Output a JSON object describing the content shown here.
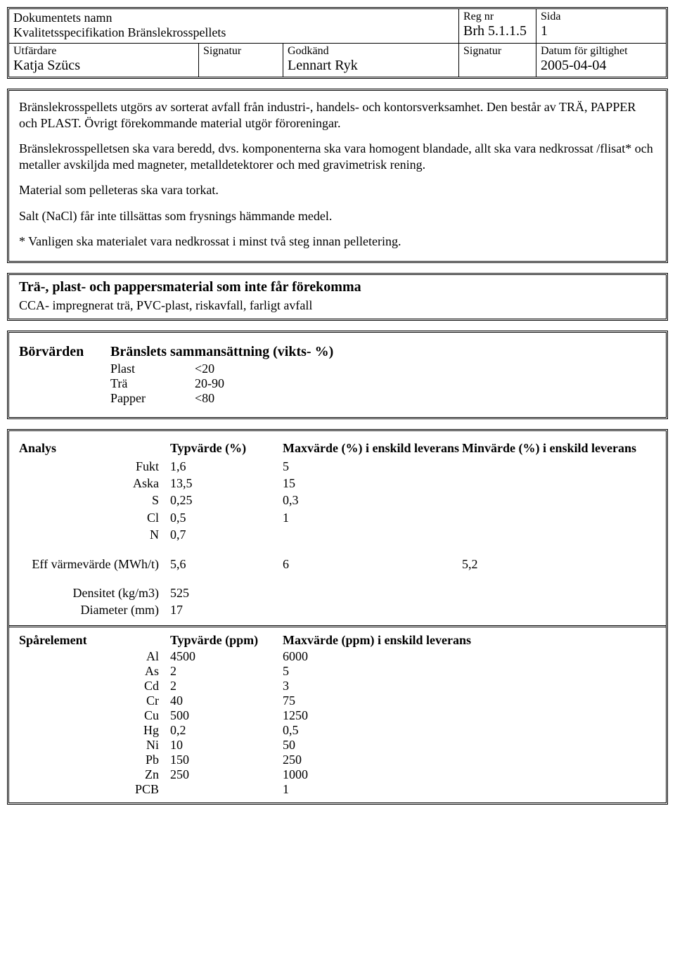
{
  "header": {
    "doc_name_label": "Dokumentets namn",
    "doc_title": "Kvalitetsspecifikation Bränslekrosspellets",
    "reg_nr_label": "Reg nr",
    "reg_nr": "Brh 5.1.1.5",
    "sida_label": "Sida",
    "sida": "1",
    "utfardare_label": "Utfärdare",
    "utfardare": "Katja Szücs",
    "signatur_label": "Signatur",
    "godkand_label": "Godkänd",
    "godkand": "Lennart Ryk",
    "signatur2_label": "Signatur",
    "datum_label": "Datum för giltighet",
    "datum": "2005-04-04"
  },
  "body": {
    "p1": "Bränslekrosspellets utgörs av sorterat avfall från industri-, handels- och kontorsverksamhet. Den består av TRÄ, PAPPER och PLAST. Övrigt förekommande material utgör föroreningar.",
    "p2": "Bränslekrosspelletsen ska vara beredd, dvs. komponenterna ska vara homogent blandade, allt ska vara nedkrossat /flisat* och metaller avskiljda med magneter, metalldetektorer och med gravimetrisk rening.",
    "p3": "Material som pelleteras ska vara torkat.",
    "p4": "Salt (NaCl) får inte tillsättas som frysnings hämmande medel.",
    "p5": "* Vanligen ska materialet vara nedkrossat i minst två steg innan pelletering."
  },
  "forbidden": {
    "heading": "Trä-, plast- och pappersmaterial som inte får förekomma",
    "text": "CCA- impregnerat trä, PVC-plast, riskavfall, farligt avfall"
  },
  "borvarden": {
    "label": "Börvärden",
    "title": "Bränslets sammansättning (vikts- %)",
    "items": [
      {
        "name": "Plast",
        "value": "<20"
      },
      {
        "name": "Trä",
        "value": " 20-90"
      },
      {
        "name": "Papper",
        "value": "<80"
      }
    ]
  },
  "analys": {
    "header": "Analys",
    "col_typ": "Typvärde (%)",
    "col_max": "Maxvärde (%) i enskild leverans",
    "col_min": "Minvärde (%) i enskild leverans",
    "rows": [
      {
        "label": "Fukt",
        "typ": "1,6",
        "max": "5",
        "min": ""
      },
      {
        "label": "Aska",
        "typ": "13,5",
        "max": "15",
        "min": ""
      },
      {
        "label": "S",
        "typ": "0,25",
        "max": "0,3",
        "min": ""
      },
      {
        "label": "Cl",
        "typ": "0,5",
        "max": "1",
        "min": ""
      },
      {
        "label": "N",
        "typ": "0,7",
        "max": "",
        "min": ""
      }
    ],
    "extra": [
      {
        "label": "Eff värmevärde (MWh/t)",
        "typ": "5,6",
        "max": "6",
        "min": "5,2"
      },
      {
        "label": "Densitet (kg/m3)",
        "typ": "525",
        "max": "",
        "min": ""
      },
      {
        "label": "Diameter (mm)",
        "typ": "17",
        "max": "",
        "min": ""
      }
    ]
  },
  "spar": {
    "header": "Spårelement",
    "col_typ": "Typvärde (ppm)",
    "col_max": "Maxvärde (ppm) i enskild leverans",
    "rows": [
      {
        "label": "Al",
        "typ": "4500",
        "max": "6000"
      },
      {
        "label": "As",
        "typ": "2",
        "max": "5"
      },
      {
        "label": "Cd",
        "typ": "2",
        "max": "3"
      },
      {
        "label": "Cr",
        "typ": "40",
        "max": "75"
      },
      {
        "label": "Cu",
        "typ": "500",
        "max": "1250"
      },
      {
        "label": "Hg",
        "typ": "0,2",
        "max": "0,5"
      },
      {
        "label": "Ni",
        "typ": "10",
        "max": "50"
      },
      {
        "label": "Pb",
        "typ": "150",
        "max": "250"
      },
      {
        "label": "Zn",
        "typ": "250",
        "max": "1000"
      },
      {
        "label": "PCB",
        "typ": "",
        "max": "1"
      }
    ]
  }
}
